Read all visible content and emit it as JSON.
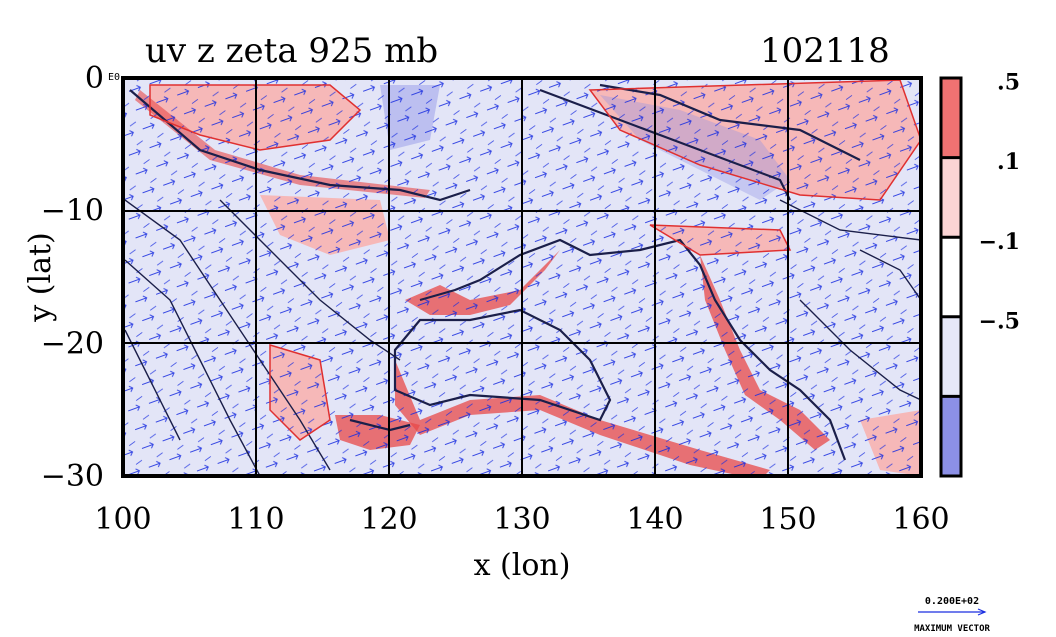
{
  "chart_data": {
    "type": "contour",
    "title_left": "uv z zeta 925 mb",
    "title_right": "102118",
    "xlabel": "x (lon)",
    "ylabel": "y (lat)",
    "x_ticks": [
      "100",
      "110",
      "120",
      "130",
      "140",
      "150",
      "160"
    ],
    "y_ticks": [
      "0",
      "−10",
      "−20",
      "−30"
    ],
    "y_tick_extra": "E0",
    "xlim": [
      100,
      160
    ],
    "ylim": [
      -30,
      0
    ],
    "colorbar": {
      "levels": [
        ".5",
        ".1",
        "−.1",
        "−.5"
      ],
      "colors": [
        "#f07272",
        "#fbd4d4",
        "#ffffff",
        "#e6e8f8",
        "#8c90e6"
      ]
    },
    "colors": {
      "positive": "#f6b8b8",
      "positive_strong": "#e84848",
      "negative": "#e3e5f7",
      "vector": "#1a2ee0",
      "contour": "#1b1f4a"
    },
    "vector_legend": {
      "value": "0.200E+02",
      "label": "MAXIMUM VECTOR"
    }
  }
}
